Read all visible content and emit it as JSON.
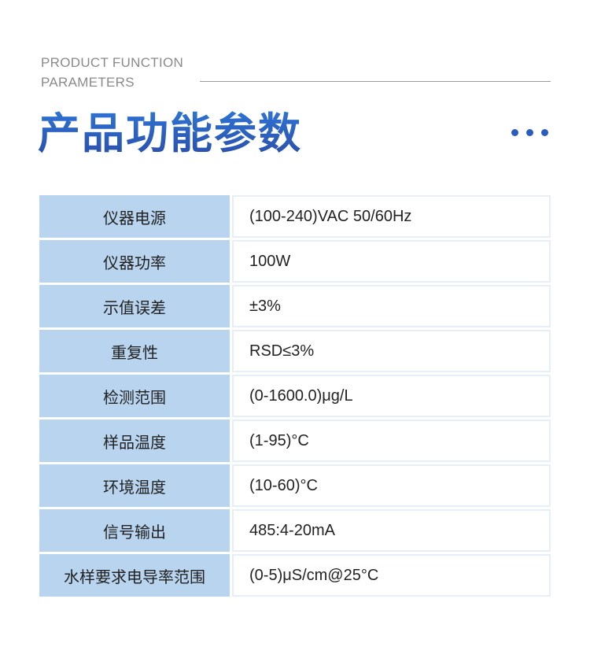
{
  "header": {
    "en_line1": "PRODUCT FUNCTION",
    "en_line2": "PARAMETERS",
    "title": "产品功能参数",
    "accent": "#2a5cc0"
  },
  "params": [
    {
      "label": "仪器电源",
      "value": "(100-240)VAC 50/60Hz"
    },
    {
      "label": "仪器功率",
      "value": "100W"
    },
    {
      "label": "示值误差",
      "value": "±3%"
    },
    {
      "label": "重复性",
      "value": "RSD≤3%"
    },
    {
      "label": "检测范围",
      "value": "(0-1600.0)μg/L"
    },
    {
      "label": "样品温度",
      "value": "(1-95)°C"
    },
    {
      "label": "环境温度",
      "value": "(10-60)°C"
    },
    {
      "label": "信号输出",
      "value": "485:4-20mA"
    },
    {
      "label": "水样要求电导率范围",
      "value": "(0-5)μS/cm@25°C"
    }
  ]
}
